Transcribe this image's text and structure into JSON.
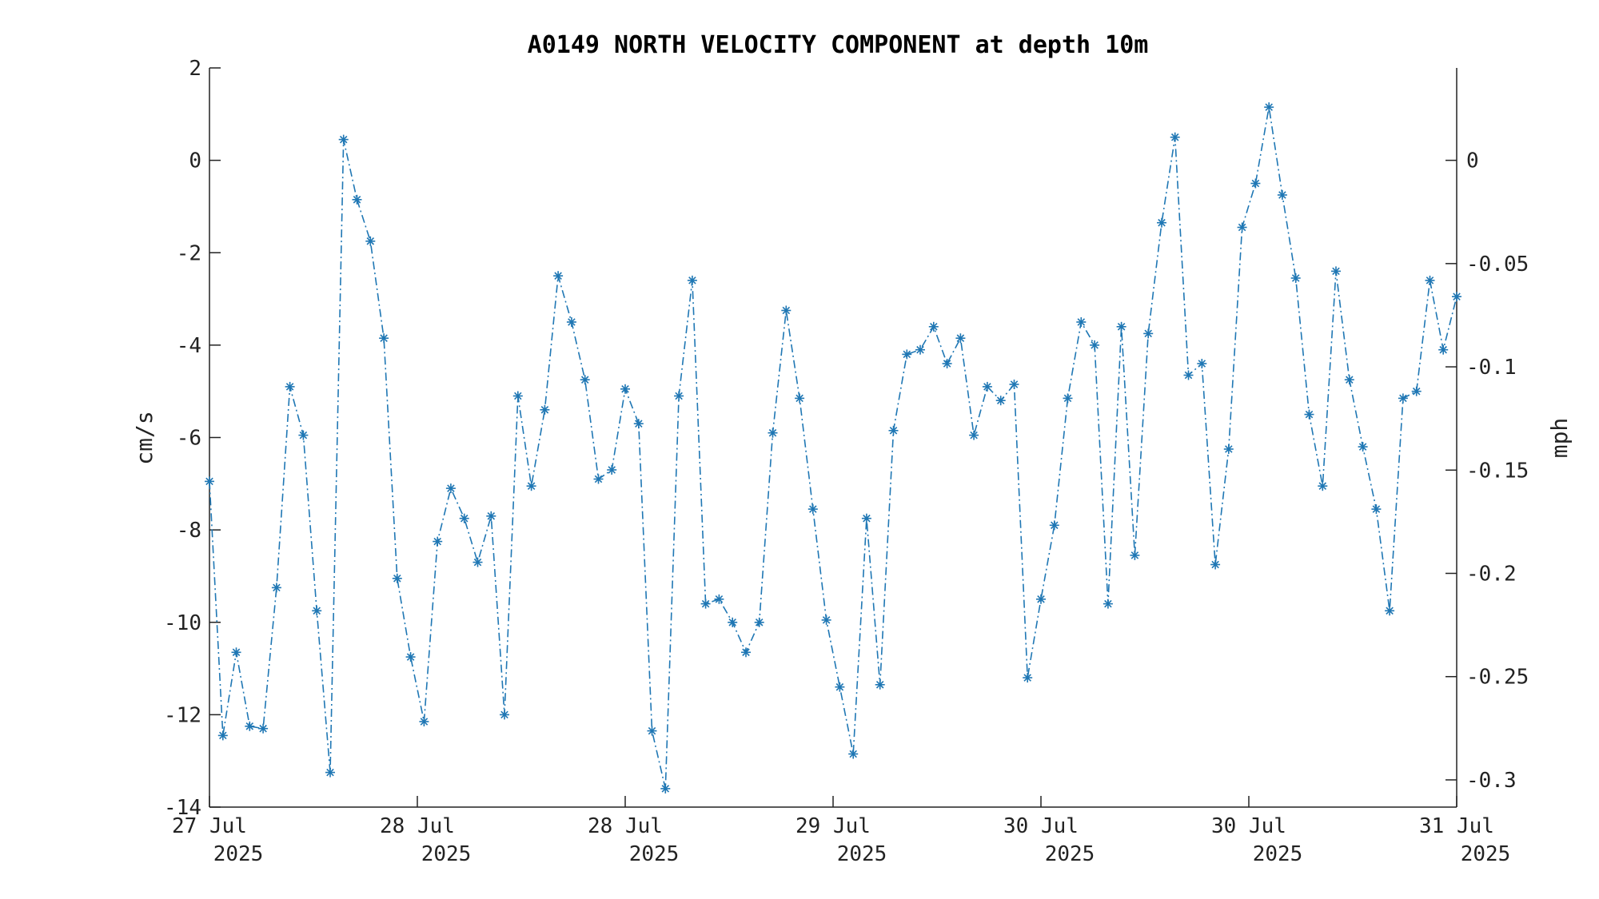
{
  "chart_data": {
    "type": "line",
    "title": "A0149 NORTH VELOCITY COMPONENT at depth 10m",
    "ylabel": "cm/s",
    "y2label": "mph",
    "ylim": [
      -14,
      2
    ],
    "y2lim": [
      -0.31318,
      0.04474
    ],
    "yticks": [
      "2",
      "0",
      "-2",
      "-4",
      "-6",
      "-8",
      "-10",
      "-12",
      "-14"
    ],
    "y2ticks": [
      "0",
      "-0.05",
      "-0.1",
      "-0.15",
      "-0.2",
      "-0.25",
      "-0.3"
    ],
    "xticks": [
      {
        "top": "27 Jul",
        "bottom": "2025"
      },
      {
        "top": "28 Jul",
        "bottom": "2025"
      },
      {
        "top": "28 Jul",
        "bottom": "2025"
      },
      {
        "top": "29 Jul",
        "bottom": "2025"
      },
      {
        "top": "30 Jul",
        "bottom": "2025"
      },
      {
        "top": "30 Jul",
        "bottom": "2025"
      },
      {
        "top": "31 Jul",
        "bottom": "2025"
      }
    ],
    "grid": false,
    "marker": "asterisk",
    "line_style": "dash-dot",
    "color": "#1f77b4",
    "series": [
      {
        "values": [
          -6.95,
          -12.45,
          -10.65,
          -12.25,
          -12.3,
          -9.25,
          -4.9,
          -5.95,
          -9.75,
          -13.25,
          0.45,
          -0.85,
          -1.75,
          -3.85,
          -9.05,
          -10.75,
          -12.15,
          -8.25,
          -7.1,
          -7.75,
          -8.7,
          -7.7,
          -12.0,
          -5.1,
          -7.05,
          -5.4,
          -2.5,
          -3.5,
          -4.75,
          -6.9,
          -6.7,
          -4.95,
          -5.7,
          -12.35,
          -13.6,
          -5.1,
          -2.6,
          -9.6,
          -9.5,
          -10.0,
          -10.65,
          -10.0,
          -5.9,
          -3.25,
          -5.15,
          -7.55,
          -9.95,
          -11.4,
          -12.85,
          -7.75,
          -11.35,
          -5.85,
          -4.2,
          -4.1,
          -3.6,
          -4.4,
          -3.85,
          -5.95,
          -4.9,
          -5.2,
          -4.85,
          -11.2,
          -9.5,
          -7.9,
          -5.15,
          -3.5,
          -4.0,
          -9.6,
          -3.6,
          -8.55,
          -3.75,
          -1.35,
          0.5,
          -4.65,
          -4.4,
          -8.75,
          -6.25,
          -1.45,
          -0.5,
          1.15,
          -0.75,
          -2.55,
          -5.5,
          -7.05,
          -2.4,
          -4.75,
          -6.2,
          -7.55,
          -9.75,
          -5.15,
          -5.0,
          -2.6,
          -4.1,
          -2.95
        ]
      }
    ]
  }
}
